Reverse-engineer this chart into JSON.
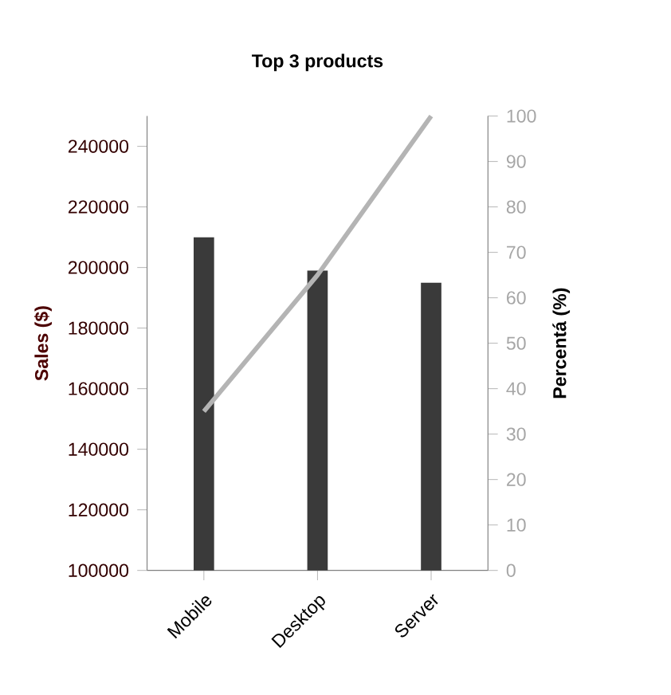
{
  "chart_data": {
    "type": "bar",
    "title": "Top 3 products",
    "ylabel": "Sales ($)",
    "y2label": "Percentá (%)",
    "categories": [
      "Mobile",
      "Desktop",
      "Server"
    ],
    "series": [
      {
        "color": "#3a3a3a",
        "values": [
          210000,
          199000,
          195000
        ]
      },
      {
        "type": "line",
        "axis": "y2",
        "color": "#b4b4b4",
        "values": [
          35,
          65,
          100
        ]
      }
    ],
    "ylim": [
      100000,
      250000
    ],
    "yticks": [
      100000,
      120000,
      140000,
      160000,
      180000,
      200000,
      220000,
      240000
    ],
    "y2lim": [
      0,
      100
    ],
    "y2ticks": [
      0,
      10,
      20,
      30,
      40,
      50,
      60,
      70,
      80,
      90,
      100
    ],
    "grid": false
  }
}
